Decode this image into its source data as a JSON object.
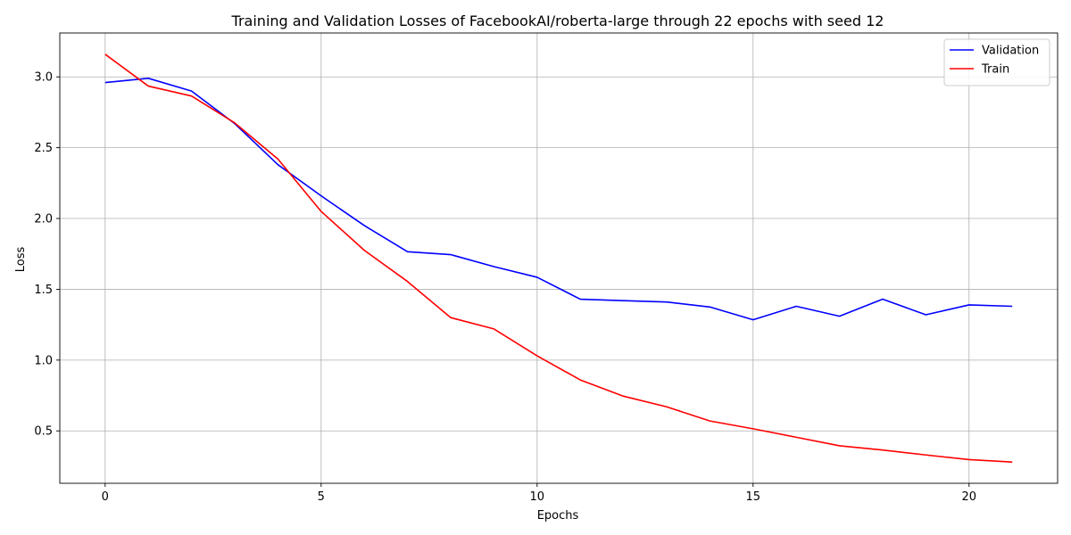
{
  "chart_data": {
    "type": "line",
    "title": "Training and Validation Losses of FacebookAI/roberta-large through 22 epochs with seed 12",
    "xlabel": "Epochs",
    "ylabel": "Loss",
    "xlim": [
      -1.05,
      22.05
    ],
    "ylim": [
      0.13,
      3.31
    ],
    "xticks": [
      0,
      5,
      10,
      15,
      20
    ],
    "xtick_labels": [
      "0",
      "5",
      "10",
      "15",
      "20"
    ],
    "yticks": [
      0.5,
      1.0,
      1.5,
      2.0,
      2.5,
      3.0
    ],
    "ytick_labels": [
      "0.5",
      "1.0",
      "1.5",
      "2.0",
      "2.5",
      "3.0"
    ],
    "grid": true,
    "legend_position": "top-right",
    "x": [
      0,
      1,
      2,
      3,
      4,
      5,
      6,
      7,
      8,
      9,
      10,
      11,
      12,
      13,
      14,
      15,
      16,
      17,
      18,
      19,
      20,
      21
    ],
    "series": [
      {
        "name": "Validation",
        "color": "#0000ff",
        "values": [
          2.96,
          2.99,
          2.9,
          2.67,
          2.38,
          2.16,
          1.95,
          1.765,
          1.745,
          1.66,
          1.585,
          1.43,
          1.42,
          1.41,
          1.375,
          1.285,
          1.38,
          1.31,
          1.43,
          1.32,
          1.39,
          1.38
        ]
      },
      {
        "name": "Train",
        "color": "#ff0000",
        "values": [
          3.16,
          2.935,
          2.865,
          2.675,
          2.42,
          2.05,
          1.775,
          1.555,
          1.3,
          1.22,
          1.03,
          0.86,
          0.745,
          0.67,
          0.57,
          0.515,
          0.455,
          0.395,
          0.365,
          0.33,
          0.297,
          0.28
        ]
      }
    ]
  }
}
